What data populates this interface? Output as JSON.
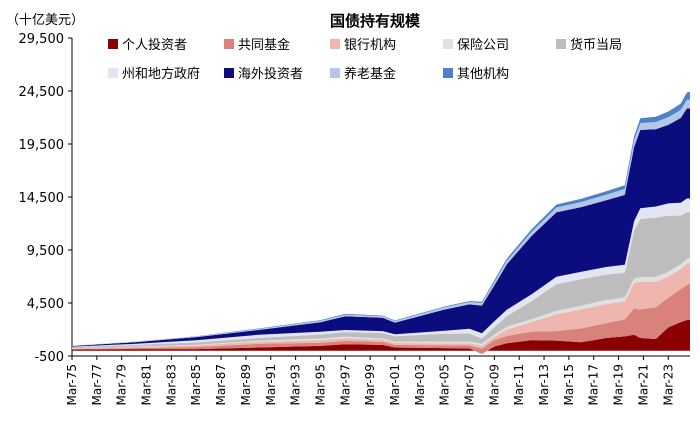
{
  "chart_data": {
    "type": "area",
    "stacked": true,
    "title": "国债持有规模",
    "unit_label": "（十亿美元）",
    "ylim": [
      -500,
      29500
    ],
    "yticks": [
      "29,500",
      "24,500",
      "19,500",
      "14,500",
      "9,500",
      "4,500",
      "-500"
    ],
    "ytick_values": [
      29500,
      24500,
      19500,
      14500,
      9500,
      4500,
      -500
    ],
    "x_tick_labels": [
      "Mar-75",
      "Mar-77",
      "Mar-79",
      "Mar-81",
      "Mar-83",
      "Mar-85",
      "Mar-87",
      "Mar-89",
      "Mar-91",
      "Mar-93",
      "Mar-95",
      "Mar-97",
      "Mar-99",
      "Mar-01",
      "Mar-03",
      "Mar-05",
      "Mar-07",
      "Mar-09",
      "Mar-11",
      "Mar-13",
      "Mar-15",
      "Mar-17",
      "Mar-19",
      "Mar-21",
      "Mar-23"
    ],
    "x": [
      1975,
      1980,
      1985,
      1990,
      1995,
      1997,
      2000,
      2001,
      2005,
      2007,
      2008,
      2009,
      2010,
      2012,
      2014,
      2016,
      2018,
      2019.5,
      2020.25,
      2020.75,
      2022,
      2023,
      2024,
      2024.5,
      2024.75
    ],
    "legend_position": "top",
    "series": [
      {
        "name": "个人投资者",
        "color": "#8B0000",
        "values": [
          100,
          150,
          150,
          300,
          450,
          600,
          550,
          300,
          250,
          220,
          -300,
          400,
          700,
          1000,
          950,
          800,
          1200,
          1350,
          1500,
          1200,
          1100,
          2200,
          2700,
          2900,
          2900
        ]
      },
      {
        "name": "共同基金",
        "color": "#D9827C",
        "values": [
          50,
          100,
          200,
          350,
          300,
          320,
          280,
          250,
          250,
          280,
          500,
          600,
          700,
          800,
          900,
          1300,
          1400,
          1600,
          2500,
          2700,
          3000,
          2800,
          3100,
          3300,
          3400
        ]
      },
      {
        "name": "银行机构",
        "color": "#EFB6B0",
        "values": [
          70,
          100,
          150,
          200,
          250,
          260,
          200,
          180,
          200,
          190,
          250,
          300,
          600,
          900,
          1600,
          1800,
          1800,
          1700,
          2400,
          2600,
          2400,
          2000,
          1900,
          2000,
          2000
        ]
      },
      {
        "name": "保险公司",
        "color": "#E0E0E0",
        "values": [
          20,
          40,
          60,
          100,
          150,
          150,
          120,
          110,
          140,
          150,
          200,
          230,
          260,
          280,
          320,
          350,
          380,
          400,
          420,
          430,
          450,
          450,
          450,
          460,
          460
        ]
      },
      {
        "name": "货币当局",
        "color": "#BDBDBD",
        "values": [
          100,
          150,
          220,
          250,
          380,
          420,
          500,
          530,
          750,
          780,
          500,
          700,
          1000,
          1700,
          2500,
          2500,
          2400,
          2300,
          4500,
          5500,
          5600,
          5300,
          4600,
          4400,
          4300
        ]
      },
      {
        "name": "州和地方政府",
        "color": "#E3E6F2",
        "values": [
          50,
          100,
          200,
          300,
          250,
          200,
          200,
          180,
          300,
          450,
          500,
          550,
          600,
          650,
          700,
          700,
          720,
          750,
          900,
          1000,
          1050,
          1150,
          1200,
          1300,
          1300
        ]
      },
      {
        "name": "海外投资者",
        "color": "#0B0C7E",
        "values": [
          50,
          150,
          300,
          450,
          900,
          1300,
          1250,
          1100,
          2000,
          2300,
          2600,
          3400,
          4300,
          5500,
          6100,
          6100,
          6300,
          6600,
          7000,
          7400,
          7300,
          7400,
          8000,
          8500,
          8500
        ]
      },
      {
        "name": "养老基金",
        "color": "#B4C7E7",
        "values": [
          20,
          40,
          60,
          100,
          150,
          160,
          150,
          150,
          200,
          230,
          250,
          280,
          320,
          380,
          440,
          480,
          520,
          560,
          600,
          640,
          680,
          720,
          760,
          800,
          820
        ]
      },
      {
        "name": "其他机构",
        "color": "#4F81C8",
        "values": [
          10,
          20,
          30,
          40,
          60,
          70,
          60,
          60,
          80,
          90,
          120,
          180,
          200,
          250,
          280,
          300,
          320,
          350,
          400,
          450,
          500,
          550,
          600,
          700,
          750
        ]
      }
    ]
  }
}
